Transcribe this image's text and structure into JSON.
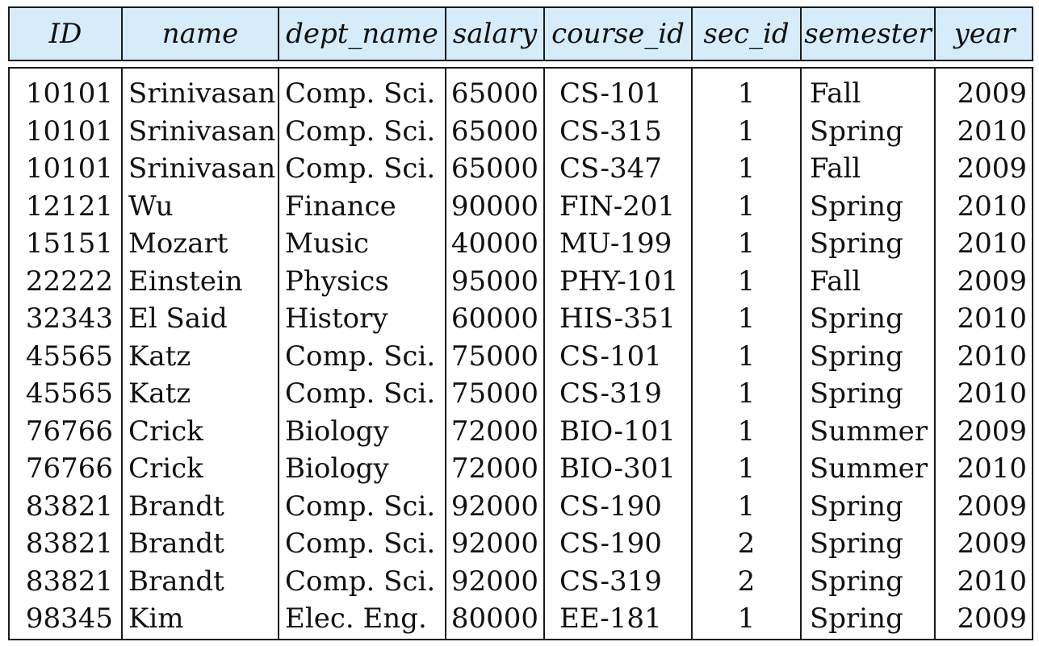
{
  "columns": [
    "ID",
    "name",
    "dept_name",
    "salary",
    "course_id",
    "sec_id",
    "semester",
    "year"
  ],
  "rows": [
    [
      "10101",
      "Srinivasan",
      "Comp. Sci.",
      "65000",
      "CS-101",
      "1",
      "Fall",
      "2009"
    ],
    [
      "10101",
      "Srinivasan",
      "Comp. Sci.",
      "65000",
      "CS-315",
      "1",
      "Spring",
      "2010"
    ],
    [
      "10101",
      "Srinivasan",
      "Comp. Sci.",
      "65000",
      "CS-347",
      "1",
      "Fall",
      "2009"
    ],
    [
      "12121",
      "Wu",
      "Finance",
      "90000",
      "FIN-201",
      "1",
      "Spring",
      "2010"
    ],
    [
      "15151",
      "Mozart",
      "Music",
      "40000",
      "MU-199",
      "1",
      "Spring",
      "2010"
    ],
    [
      "22222",
      "Einstein",
      "Physics",
      "95000",
      "PHY-101",
      "1",
      "Fall",
      "2009"
    ],
    [
      "32343",
      "El Said",
      "History",
      "60000",
      "HIS-351",
      "1",
      "Spring",
      "2010"
    ],
    [
      "45565",
      "Katz",
      "Comp. Sci.",
      "75000",
      "CS-101",
      "1",
      "Spring",
      "2010"
    ],
    [
      "45565",
      "Katz",
      "Comp. Sci.",
      "75000",
      "CS-319",
      "1",
      "Spring",
      "2010"
    ],
    [
      "76766",
      "Crick",
      "Biology",
      "72000",
      "BIO-101",
      "1",
      "Summer",
      "2009"
    ],
    [
      "76766",
      "Crick",
      "Biology",
      "72000",
      "BIO-301",
      "1",
      "Summer",
      "2010"
    ],
    [
      "83821",
      "Brandt",
      "Comp. Sci.",
      "92000",
      "CS-190",
      "1",
      "Spring",
      "2009"
    ],
    [
      "83821",
      "Brandt",
      "Comp. Sci.",
      "92000",
      "CS-190",
      "2",
      "Spring",
      "2009"
    ],
    [
      "83821",
      "Brandt",
      "Comp. Sci.",
      "92000",
      "CS-319",
      "2",
      "Spring",
      "2010"
    ],
    [
      "98345",
      "Kim",
      "Elec. Eng.",
      "80000",
      "EE-181",
      "1",
      "Spring",
      "2009"
    ]
  ],
  "colors": {
    "header_background": "#d6ecfa",
    "border": "#1a1a1a",
    "text": "#111111"
  }
}
